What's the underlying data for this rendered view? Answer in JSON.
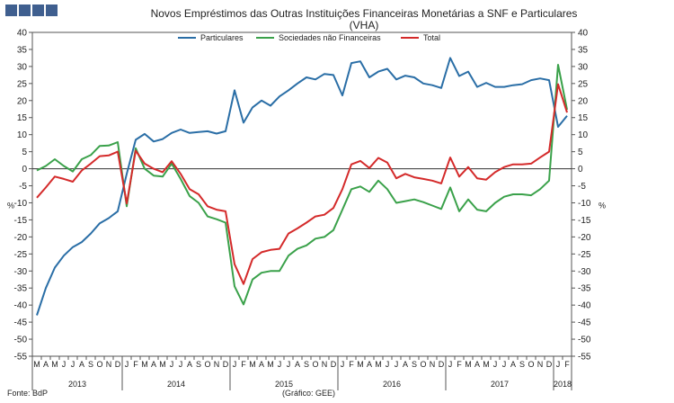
{
  "chart_data": {
    "type": "line",
    "title": "Novos Empréstimos das Outras Instituições Financeiras Monetárias a SNF e Particulares",
    "subtitle": "(VHA)",
    "ylabel_left": "%",
    "ylabel_right": "%",
    "ylim": [
      -55,
      40
    ],
    "yticks": [
      40,
      35,
      30,
      25,
      20,
      15,
      10,
      5,
      0,
      -5,
      -10,
      -15,
      -20,
      -25,
      -30,
      -35,
      -40,
      -45,
      -50,
      -55
    ],
    "grid": false,
    "legend_position": "top-center",
    "month_labels": [
      "M",
      "A",
      "M",
      "J",
      "J",
      "A",
      "S",
      "O",
      "N",
      "D",
      "J",
      "F",
      "M",
      "A",
      "M",
      "J",
      "J",
      "A",
      "S",
      "O",
      "N",
      "D",
      "J",
      "F",
      "M",
      "A",
      "M",
      "J",
      "J",
      "A",
      "S",
      "O",
      "N",
      "D",
      "J",
      "F",
      "M",
      "A",
      "M",
      "J",
      "J",
      "A",
      "S",
      "O",
      "N",
      "D",
      "J",
      "F",
      "M",
      "A",
      "M",
      "J",
      "J",
      "A",
      "S",
      "O",
      "N",
      "D",
      "J",
      "F"
    ],
    "years": [
      {
        "label": "2013",
        "start": 0,
        "count": 10
      },
      {
        "label": "2014",
        "start": 10,
        "count": 12
      },
      {
        "label": "2015",
        "start": 22,
        "count": 12
      },
      {
        "label": "2016",
        "start": 34,
        "count": 12
      },
      {
        "label": "2017",
        "start": 46,
        "count": 12
      },
      {
        "label": "2018",
        "start": 58,
        "count": 2
      }
    ],
    "series": [
      {
        "name": "Particulares",
        "color": "#2a6ea6",
        "values": [
          -43,
          -35,
          -29,
          -25.5,
          -23,
          -21.5,
          -19,
          -16,
          -14.5,
          -12.5,
          -1.5,
          8.5,
          10.2,
          8,
          8.7,
          10.5,
          11.5,
          10.5,
          10.8,
          11,
          10.3,
          11,
          23,
          13.5,
          18,
          20,
          18.5,
          21.2,
          23,
          25,
          26.8,
          26.2,
          27.8,
          27.5,
          21.5,
          31,
          31.5,
          26.8,
          28.5,
          29.3,
          26.2,
          27.3,
          26.8,
          25,
          24.5,
          23.7,
          32.5,
          27.2,
          28.5,
          24,
          25.2,
          24,
          24,
          24.5,
          24.8,
          26,
          26.5,
          26,
          12.3,
          15.5
        ]
      },
      {
        "name": "Sociedades não Financeiras",
        "color": "#3aa14a",
        "values": [
          -0.5,
          0.8,
          2.8,
          0.8,
          -0.8,
          2.8,
          4,
          6.7,
          6.8,
          7.8,
          -11,
          6,
          0,
          -2,
          -2.3,
          1.5,
          -3,
          -8,
          -10,
          -14,
          -14.8,
          -15.8,
          -34.5,
          -39.8,
          -32.5,
          -30.5,
          -30,
          -30,
          -25.5,
          -23.5,
          -22.5,
          -20.5,
          -20,
          -18,
          -12,
          -6,
          -5.2,
          -6.8,
          -3.5,
          -6,
          -10,
          -9.5,
          -9,
          -9.8,
          -10.8,
          -11.8,
          -5.5,
          -12.5,
          -9,
          -12,
          -12.5,
          -10,
          -8.2,
          -7.5,
          -7.5,
          -7.8,
          -6,
          -3.5,
          30.5,
          17.3
        ]
      },
      {
        "name": "Total",
        "color": "#d42a2a",
        "values": [
          -8.5,
          -5.5,
          -2.3,
          -3,
          -3.8,
          -0.5,
          1.5,
          3.7,
          3.9,
          5,
          -10.2,
          5.3,
          1.5,
          0,
          -1,
          2.2,
          -1.5,
          -6,
          -7.5,
          -11,
          -12,
          -12.5,
          -28,
          -33.8,
          -26.5,
          -24.5,
          -23.8,
          -23.5,
          -19,
          -17.5,
          -15.8,
          -14,
          -13.5,
          -11.5,
          -6,
          1.3,
          2.3,
          0.2,
          3.2,
          1.8,
          -2.8,
          -1.5,
          -2.5,
          -3,
          -3.5,
          -4.3,
          3.3,
          -2.3,
          0.5,
          -2.8,
          -3.2,
          -1,
          0.5,
          1.3,
          1.3,
          1.5,
          3.3,
          5,
          24.8,
          16.5
        ]
      }
    ]
  },
  "footer": {
    "source": "Fonte: BdP",
    "credit": "(Gráfico: GEE)"
  }
}
